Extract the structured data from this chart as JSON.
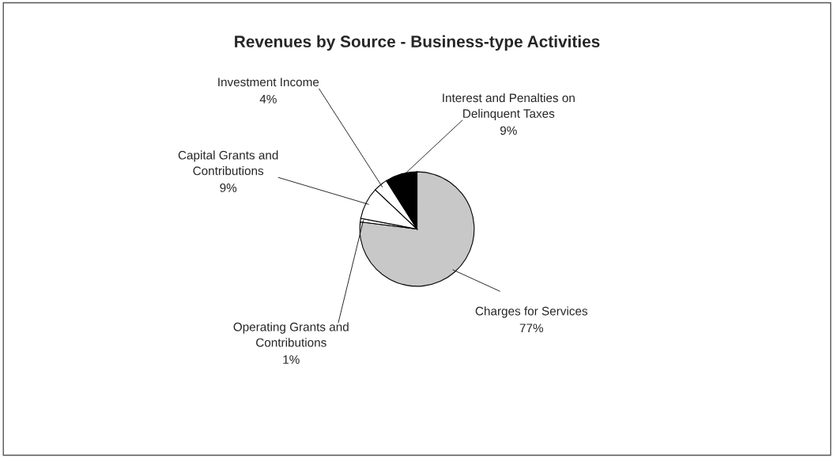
{
  "chart_data": {
    "type": "pie",
    "title": "Revenues by Source - Business-type Activities",
    "categories": [
      "Charges for Services",
      "Operating Grants and Contributions",
      "Capital Grants and Contributions",
      "Investment Income",
      "Interest and Penalties on Delinquent Taxes"
    ],
    "values": [
      77,
      1,
      9,
      4,
      9
    ],
    "colors": [
      "#c8c8c8",
      "#ffffff",
      "#ffffff",
      "#ffffff",
      "#000000"
    ],
    "value_labels": [
      "77%",
      "1%",
      "9%",
      "4%",
      "9%"
    ]
  }
}
